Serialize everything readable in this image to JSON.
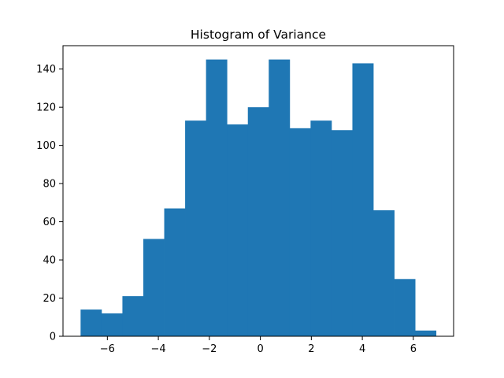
{
  "chart_data": {
    "type": "bar",
    "subtype": "histogram",
    "title": "Histogram of Variance",
    "xlabel": "",
    "ylabel": "",
    "bin_edges": [
      -7.05,
      -6.23,
      -5.41,
      -4.59,
      -3.77,
      -2.95,
      -2.13,
      -1.31,
      -0.49,
      0.33,
      1.15,
      1.97,
      2.79,
      3.61,
      4.43,
      5.25,
      6.07,
      6.89
    ],
    "values": [
      14,
      12,
      21,
      51,
      67,
      113,
      145,
      111,
      120,
      145,
      109,
      113,
      108,
      143,
      66,
      30,
      3
    ],
    "xlim": [
      -7.74,
      7.58
    ],
    "ylim": [
      0,
      152.25
    ],
    "xticks": [
      -6,
      -4,
      -2,
      0,
      2,
      4,
      6
    ],
    "xtick_labels": [
      "−6",
      "−4",
      "−2",
      "0",
      "2",
      "4",
      "6"
    ],
    "yticks": [
      0,
      20,
      40,
      60,
      80,
      100,
      120,
      140
    ],
    "ytick_labels": [
      "0",
      "20",
      "40",
      "60",
      "80",
      "100",
      "120",
      "140"
    ],
    "bar_color": "#1f77b4",
    "grid": false,
    "legend": "none"
  }
}
